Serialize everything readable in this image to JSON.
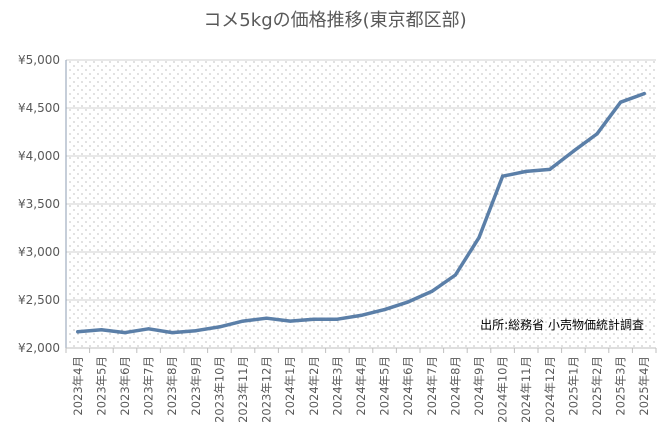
{
  "chart_data": {
    "type": "line",
    "title": "コメ5kgの価格推移(東京都区部)",
    "source_note": "出所:総務省 小売物価統計調査",
    "x": [
      "2023年4月",
      "2023年5月",
      "2023年6月",
      "2023年7月",
      "2023年8月",
      "2023年9月",
      "2023年10月",
      "2023年11月",
      "2023年12月",
      "2024年1月",
      "2024年2月",
      "2024年3月",
      "2024年4月",
      "2024年5月",
      "2024年6月",
      "2024年7月",
      "2024年8月",
      "2024年9月",
      "2024年10月",
      "2024年11月",
      "2024年12月",
      "2025年1月",
      "2025年2月",
      "2025年3月",
      "2025年4月"
    ],
    "series": [
      {
        "name": "",
        "color": "#5b7fa8",
        "values": [
          2170,
          2190,
          2160,
          2200,
          2160,
          2180,
          2220,
          2280,
          2310,
          2280,
          2300,
          2300,
          2340,
          2400,
          2480,
          2590,
          2760,
          3150,
          3790,
          3840,
          3860,
          4050,
          4230,
          4560,
          4650
        ]
      }
    ],
    "ylim": [
      2000,
      5000
    ],
    "yticks": [
      2000,
      2500,
      3000,
      3500,
      4000,
      4500,
      5000
    ],
    "ytick_labels": [
      "¥2,000",
      "¥2,500",
      "¥3,000",
      "¥3,500",
      "¥4,000",
      "¥4,500",
      "¥5,000"
    ],
    "grid": true,
    "legend": "none",
    "xlabel": "",
    "ylabel": ""
  }
}
